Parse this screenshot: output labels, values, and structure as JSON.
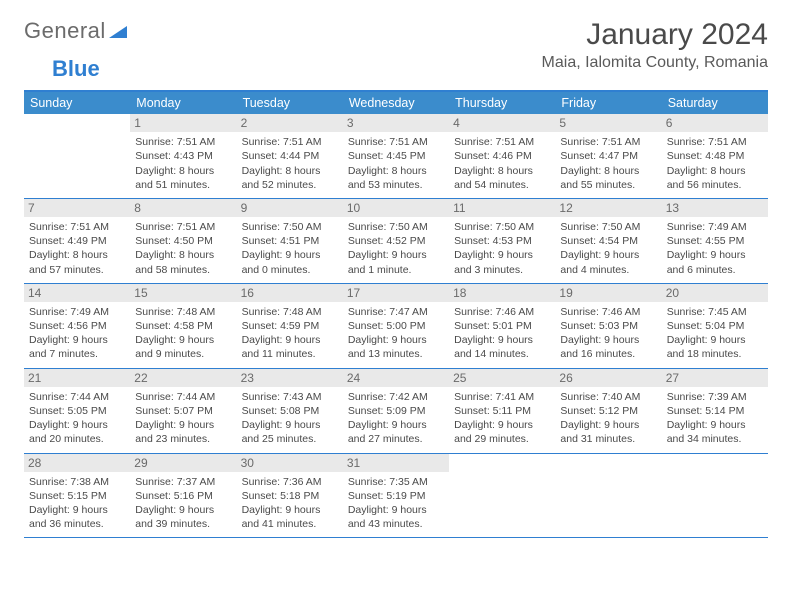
{
  "logo": {
    "general": "General",
    "blue": "Blue"
  },
  "title": "January 2024",
  "location": "Maia, Ialomita County, Romania",
  "weekdays": [
    "Sunday",
    "Monday",
    "Tuesday",
    "Wednesday",
    "Thursday",
    "Friday",
    "Saturday"
  ],
  "colors": {
    "brand_blue": "#3b8ccc",
    "rule_blue": "#2f7fd1",
    "daynum_bg": "#e9e9e9",
    "text": "#4a4a4a"
  },
  "weeks": [
    [
      {
        "n": "",
        "sunrise": "",
        "sunset": "",
        "dl1": "",
        "dl2": ""
      },
      {
        "n": "1",
        "sunrise": "Sunrise: 7:51 AM",
        "sunset": "Sunset: 4:43 PM",
        "dl1": "Daylight: 8 hours",
        "dl2": "and 51 minutes."
      },
      {
        "n": "2",
        "sunrise": "Sunrise: 7:51 AM",
        "sunset": "Sunset: 4:44 PM",
        "dl1": "Daylight: 8 hours",
        "dl2": "and 52 minutes."
      },
      {
        "n": "3",
        "sunrise": "Sunrise: 7:51 AM",
        "sunset": "Sunset: 4:45 PM",
        "dl1": "Daylight: 8 hours",
        "dl2": "and 53 minutes."
      },
      {
        "n": "4",
        "sunrise": "Sunrise: 7:51 AM",
        "sunset": "Sunset: 4:46 PM",
        "dl1": "Daylight: 8 hours",
        "dl2": "and 54 minutes."
      },
      {
        "n": "5",
        "sunrise": "Sunrise: 7:51 AM",
        "sunset": "Sunset: 4:47 PM",
        "dl1": "Daylight: 8 hours",
        "dl2": "and 55 minutes."
      },
      {
        "n": "6",
        "sunrise": "Sunrise: 7:51 AM",
        "sunset": "Sunset: 4:48 PM",
        "dl1": "Daylight: 8 hours",
        "dl2": "and 56 minutes."
      }
    ],
    [
      {
        "n": "7",
        "sunrise": "Sunrise: 7:51 AM",
        "sunset": "Sunset: 4:49 PM",
        "dl1": "Daylight: 8 hours",
        "dl2": "and 57 minutes."
      },
      {
        "n": "8",
        "sunrise": "Sunrise: 7:51 AM",
        "sunset": "Sunset: 4:50 PM",
        "dl1": "Daylight: 8 hours",
        "dl2": "and 58 minutes."
      },
      {
        "n": "9",
        "sunrise": "Sunrise: 7:50 AM",
        "sunset": "Sunset: 4:51 PM",
        "dl1": "Daylight: 9 hours",
        "dl2": "and 0 minutes."
      },
      {
        "n": "10",
        "sunrise": "Sunrise: 7:50 AM",
        "sunset": "Sunset: 4:52 PM",
        "dl1": "Daylight: 9 hours",
        "dl2": "and 1 minute."
      },
      {
        "n": "11",
        "sunrise": "Sunrise: 7:50 AM",
        "sunset": "Sunset: 4:53 PM",
        "dl1": "Daylight: 9 hours",
        "dl2": "and 3 minutes."
      },
      {
        "n": "12",
        "sunrise": "Sunrise: 7:50 AM",
        "sunset": "Sunset: 4:54 PM",
        "dl1": "Daylight: 9 hours",
        "dl2": "and 4 minutes."
      },
      {
        "n": "13",
        "sunrise": "Sunrise: 7:49 AM",
        "sunset": "Sunset: 4:55 PM",
        "dl1": "Daylight: 9 hours",
        "dl2": "and 6 minutes."
      }
    ],
    [
      {
        "n": "14",
        "sunrise": "Sunrise: 7:49 AM",
        "sunset": "Sunset: 4:56 PM",
        "dl1": "Daylight: 9 hours",
        "dl2": "and 7 minutes."
      },
      {
        "n": "15",
        "sunrise": "Sunrise: 7:48 AM",
        "sunset": "Sunset: 4:58 PM",
        "dl1": "Daylight: 9 hours",
        "dl2": "and 9 minutes."
      },
      {
        "n": "16",
        "sunrise": "Sunrise: 7:48 AM",
        "sunset": "Sunset: 4:59 PM",
        "dl1": "Daylight: 9 hours",
        "dl2": "and 11 minutes."
      },
      {
        "n": "17",
        "sunrise": "Sunrise: 7:47 AM",
        "sunset": "Sunset: 5:00 PM",
        "dl1": "Daylight: 9 hours",
        "dl2": "and 13 minutes."
      },
      {
        "n": "18",
        "sunrise": "Sunrise: 7:46 AM",
        "sunset": "Sunset: 5:01 PM",
        "dl1": "Daylight: 9 hours",
        "dl2": "and 14 minutes."
      },
      {
        "n": "19",
        "sunrise": "Sunrise: 7:46 AM",
        "sunset": "Sunset: 5:03 PM",
        "dl1": "Daylight: 9 hours",
        "dl2": "and 16 minutes."
      },
      {
        "n": "20",
        "sunrise": "Sunrise: 7:45 AM",
        "sunset": "Sunset: 5:04 PM",
        "dl1": "Daylight: 9 hours",
        "dl2": "and 18 minutes."
      }
    ],
    [
      {
        "n": "21",
        "sunrise": "Sunrise: 7:44 AM",
        "sunset": "Sunset: 5:05 PM",
        "dl1": "Daylight: 9 hours",
        "dl2": "and 20 minutes."
      },
      {
        "n": "22",
        "sunrise": "Sunrise: 7:44 AM",
        "sunset": "Sunset: 5:07 PM",
        "dl1": "Daylight: 9 hours",
        "dl2": "and 23 minutes."
      },
      {
        "n": "23",
        "sunrise": "Sunrise: 7:43 AM",
        "sunset": "Sunset: 5:08 PM",
        "dl1": "Daylight: 9 hours",
        "dl2": "and 25 minutes."
      },
      {
        "n": "24",
        "sunrise": "Sunrise: 7:42 AM",
        "sunset": "Sunset: 5:09 PM",
        "dl1": "Daylight: 9 hours",
        "dl2": "and 27 minutes."
      },
      {
        "n": "25",
        "sunrise": "Sunrise: 7:41 AM",
        "sunset": "Sunset: 5:11 PM",
        "dl1": "Daylight: 9 hours",
        "dl2": "and 29 minutes."
      },
      {
        "n": "26",
        "sunrise": "Sunrise: 7:40 AM",
        "sunset": "Sunset: 5:12 PM",
        "dl1": "Daylight: 9 hours",
        "dl2": "and 31 minutes."
      },
      {
        "n": "27",
        "sunrise": "Sunrise: 7:39 AM",
        "sunset": "Sunset: 5:14 PM",
        "dl1": "Daylight: 9 hours",
        "dl2": "and 34 minutes."
      }
    ],
    [
      {
        "n": "28",
        "sunrise": "Sunrise: 7:38 AM",
        "sunset": "Sunset: 5:15 PM",
        "dl1": "Daylight: 9 hours",
        "dl2": "and 36 minutes."
      },
      {
        "n": "29",
        "sunrise": "Sunrise: 7:37 AM",
        "sunset": "Sunset: 5:16 PM",
        "dl1": "Daylight: 9 hours",
        "dl2": "and 39 minutes."
      },
      {
        "n": "30",
        "sunrise": "Sunrise: 7:36 AM",
        "sunset": "Sunset: 5:18 PM",
        "dl1": "Daylight: 9 hours",
        "dl2": "and 41 minutes."
      },
      {
        "n": "31",
        "sunrise": "Sunrise: 7:35 AM",
        "sunset": "Sunset: 5:19 PM",
        "dl1": "Daylight: 9 hours",
        "dl2": "and 43 minutes."
      },
      {
        "n": "",
        "sunrise": "",
        "sunset": "",
        "dl1": "",
        "dl2": ""
      },
      {
        "n": "",
        "sunrise": "",
        "sunset": "",
        "dl1": "",
        "dl2": ""
      },
      {
        "n": "",
        "sunrise": "",
        "sunset": "",
        "dl1": "",
        "dl2": ""
      }
    ]
  ]
}
